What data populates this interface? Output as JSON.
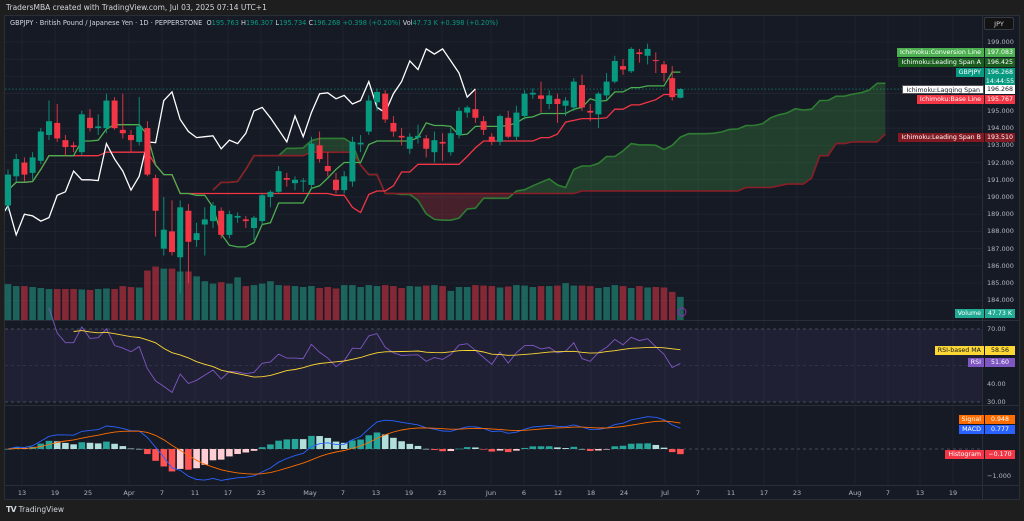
{
  "header": {
    "credit": "TradersMBA created with TradingView.com, Jul 03, 2025 07:14 UTC+1"
  },
  "legend": {
    "symbol": "GBPJPY · British Pound / Japanese Yen · 1D · PEPPERSTONE",
    "o_label": "O",
    "o": "195.763",
    "h_label": "H",
    "h": "196.307",
    "l_label": "L",
    "l": "195.734",
    "c_label": "C",
    "c": "196.268",
    "change": "+0.398 (+0.20%)",
    "vol_label": "Vol",
    "vol": "47.73 K",
    "vol_change": "+0.398 (+0.20%)"
  },
  "currency_button": "JPY",
  "tags": {
    "conversion": {
      "label": "Ichimoku:Conversion Line",
      "value": "197.083",
      "color": "#4caf50"
    },
    "span_a": {
      "label": "Ichimoku:Leading Span A",
      "value": "196.425",
      "color": "#1b5e20"
    },
    "symbol": {
      "label": "GBPJPY",
      "value": "196.268",
      "countdown": "14:44:55",
      "color": "#089981"
    },
    "lagging": {
      "label": "Ichimoku:Lagging Span",
      "value": "196.268",
      "color": "#ffffff"
    },
    "base": {
      "label": "Ichimoku:Base Line",
      "value": "195.767",
      "color": "#f23645"
    },
    "span_b": {
      "label": "Ichimoku:Leading Span B",
      "value": "193.510",
      "color": "#801922"
    },
    "volume": {
      "label": "Volume",
      "value": "47.73 K",
      "color": "#22ab94"
    },
    "rsi_ma": {
      "label": "RSI-based MA",
      "value": "58.56",
      "color": "#fdd835"
    },
    "rsi": {
      "label": "RSI",
      "value": "51.60",
      "color": "#7e57c2"
    },
    "signal": {
      "label": "Signal",
      "value": "0.948",
      "color": "#ff6d00"
    },
    "macd": {
      "label": "MACD",
      "value": "0.777",
      "color": "#2962ff"
    },
    "histogram": {
      "label": "Histogram",
      "value": "−0.170",
      "color": "#f23645"
    }
  },
  "price_axis": [
    "199.000",
    "195.000",
    "194.000",
    "193.000",
    "192.000",
    "191.000",
    "190.000",
    "189.000",
    "188.000",
    "187.000",
    "186.000",
    "185.000",
    "184.000"
  ],
  "rsi_axis": [
    "70.00",
    "40.00",
    "30.00"
  ],
  "macd_axis": [
    "0.000",
    "−1.000"
  ],
  "x_axis": [
    "13",
    "19",
    "25",
    "Apr",
    "7",
    "11",
    "17",
    "23",
    "May",
    "7",
    "13",
    "19",
    "23",
    "Jun",
    "6",
    "12",
    "18",
    "24",
    "Jul",
    "7",
    "11",
    "17",
    "23",
    "Aug",
    "7",
    "13",
    "19"
  ],
  "footer": {
    "brand": "TradingView"
  },
  "chart_data": {
    "type": "candlestick",
    "symbol": "GBPJPY",
    "timeframe": "1D",
    "price_range": [
      183.5,
      199.8
    ],
    "indicators": [
      "Ichimoku Cloud",
      "Volume",
      "RSI 14 + RSI-based MA",
      "MACD 12 26 9"
    ],
    "rsi_levels": [
      70,
      30
    ],
    "colors": {
      "up": "#089981",
      "down": "#f23645",
      "conversion": "#4caf50",
      "base": "#f23645",
      "lagging": "#ffffff",
      "span_a": "#1b5e20",
      "span_b": "#801922",
      "rsi": "#7e57c2",
      "rsi_ma": "#fdd835",
      "macd": "#2962ff",
      "signal": "#ff6d00"
    },
    "ohlcv_columns": [
      "open",
      "high",
      "low",
      "close",
      "volume_k"
    ],
    "ohlcv": [
      [
        189.5,
        191.6,
        189.2,
        191.3,
        74
      ],
      [
        191.2,
        192.5,
        190.9,
        192.2,
        70
      ],
      [
        192.0,
        192.3,
        190.9,
        191.3,
        70
      ],
      [
        191.4,
        192.6,
        191.0,
        192.3,
        68
      ],
      [
        192.1,
        194.0,
        191.9,
        193.8,
        66
      ],
      [
        193.6,
        195.6,
        193.3,
        194.4,
        64
      ],
      [
        194.3,
        195.4,
        193.2,
        193.4,
        64
      ],
      [
        193.3,
        193.6,
        192.4,
        192.9,
        64
      ],
      [
        193.0,
        193.2,
        192.6,
        192.9,
        64
      ],
      [
        192.6,
        195.0,
        192.4,
        194.8,
        63
      ],
      [
        194.6,
        195.1,
        193.8,
        194.0,
        62
      ],
      [
        194.0,
        194.8,
        193.6,
        194.1,
        64
      ],
      [
        194.0,
        196.0,
        193.7,
        195.6,
        65
      ],
      [
        195.6,
        195.8,
        193.9,
        194.0,
        64
      ],
      [
        193.9,
        196.0,
        193.4,
        193.7,
        70
      ],
      [
        193.6,
        193.9,
        192.6,
        193.3,
        68
      ],
      [
        193.2,
        195.8,
        193.0,
        194.1,
        67
      ],
      [
        194.0,
        194.4,
        191.2,
        191.3,
        102
      ],
      [
        191.1,
        191.3,
        187.7,
        189.2,
        110
      ],
      [
        187.0,
        190.0,
        186.6,
        188.1,
        106
      ],
      [
        188.0,
        189.8,
        186.6,
        186.8,
        106
      ],
      [
        186.5,
        189.8,
        184.4,
        189.4,
        100
      ],
      [
        189.2,
        189.6,
        185.0,
        187.4,
        100
      ],
      [
        187.5,
        188.5,
        187.1,
        187.9,
        90
      ],
      [
        188.4,
        189.4,
        186.6,
        188.7,
        80
      ],
      [
        188.6,
        189.7,
        188.2,
        189.5,
        75
      ],
      [
        189.2,
        189.4,
        187.6,
        187.8,
        78
      ],
      [
        187.8,
        189.2,
        187.6,
        189.0,
        75
      ],
      [
        188.8,
        189.1,
        188.5,
        188.9,
        88
      ],
      [
        188.7,
        188.9,
        188.2,
        188.6,
        70
      ],
      [
        188.2,
        188.9,
        187.5,
        188.8,
        72
      ],
      [
        188.6,
        190.2,
        188.4,
        190.1,
        75
      ],
      [
        190.0,
        190.4,
        189.4,
        190.3,
        80
      ],
      [
        190.3,
        191.8,
        190.2,
        191.5,
        72
      ],
      [
        191.1,
        191.4,
        190.6,
        191.0,
        71
      ],
      [
        190.8,
        191.2,
        190.4,
        191.0,
        70
      ],
      [
        190.9,
        191.1,
        190.3,
        190.95,
        68
      ],
      [
        190.7,
        193.5,
        190.5,
        193.1,
        70
      ],
      [
        193.0,
        193.8,
        192.0,
        192.2,
        66
      ],
      [
        191.8,
        192.6,
        191.2,
        191.5,
        68
      ],
      [
        191.0,
        191.4,
        190.2,
        190.4,
        65
      ],
      [
        190.4,
        191.5,
        190.2,
        191.2,
        72
      ],
      [
        190.9,
        193.5,
        190.6,
        193.2,
        72
      ],
      [
        193.05,
        193.6,
        192.6,
        193.15,
        68
      ],
      [
        193.8,
        195.9,
        193.6,
        195.6,
        72
      ],
      [
        195.5,
        196.3,
        195.0,
        196.1,
        70
      ],
      [
        196.0,
        196.2,
        194.3,
        194.5,
        72
      ],
      [
        194.3,
        194.7,
        193.5,
        193.8,
        70
      ],
      [
        193.55,
        194.0,
        193.0,
        193.45,
        66
      ],
      [
        192.8,
        193.7,
        192.5,
        193.5,
        70
      ],
      [
        193.45,
        194.2,
        193.1,
        193.55,
        69
      ],
      [
        193.4,
        193.6,
        192.3,
        192.8,
        71
      ],
      [
        192.6,
        193.8,
        192.0,
        193.3,
        72
      ],
      [
        193.2,
        193.7,
        192.1,
        193.1,
        70
      ],
      [
        192.6,
        194.0,
        192.4,
        193.7,
        60
      ],
      [
        193.6,
        195.2,
        193.4,
        195.0,
        68
      ],
      [
        194.9,
        195.3,
        194.6,
        195.2,
        68
      ],
      [
        195.1,
        196.2,
        194.3,
        194.6,
        72
      ],
      [
        194.4,
        194.7,
        193.6,
        193.9,
        71
      ],
      [
        193.5,
        193.7,
        193.0,
        193.2,
        70
      ],
      [
        193.2,
        194.8,
        193.0,
        194.7,
        67
      ],
      [
        194.6,
        195.0,
        193.4,
        193.5,
        69
      ],
      [
        193.5,
        195.3,
        193.3,
        194.9,
        72
      ],
      [
        194.7,
        196.2,
        194.5,
        196.0,
        71
      ],
      [
        195.95,
        196.3,
        195.7,
        196.05,
        68
      ],
      [
        195.9,
        196.7,
        194.9,
        195.7,
        70
      ],
      [
        195.4,
        196.2,
        195.1,
        195.9,
        70
      ],
      [
        195.7,
        196.0,
        194.3,
        195.4,
        71
      ],
      [
        195.3,
        195.8,
        194.7,
        195.6,
        76
      ],
      [
        195.2,
        196.9,
        195.0,
        196.7,
        71
      ],
      [
        196.5,
        197.1,
        195.0,
        195.2,
        71
      ],
      [
        195.0,
        195.4,
        194.4,
        194.9,
        70
      ],
      [
        194.8,
        196.1,
        194.0,
        196.0,
        66
      ],
      [
        195.9,
        197.2,
        195.6,
        196.7,
        68
      ],
      [
        196.7,
        198.2,
        196.6,
        197.9,
        72
      ],
      [
        197.6,
        198.0,
        197.1,
        197.4,
        70
      ],
      [
        197.3,
        198.7,
        197.2,
        198.6,
        66
      ],
      [
        198.4,
        198.6,
        197.8,
        198.3,
        70
      ],
      [
        198.2,
        198.9,
        197.7,
        198.6,
        67
      ],
      [
        197.95,
        198.4,
        197.2,
        197.9,
        68
      ],
      [
        197.7,
        197.9,
        196.7,
        197.2,
        67
      ],
      [
        196.9,
        197.6,
        195.6,
        195.8,
        58
      ],
      [
        195.763,
        196.307,
        195.734,
        196.268,
        47.73
      ]
    ]
  }
}
